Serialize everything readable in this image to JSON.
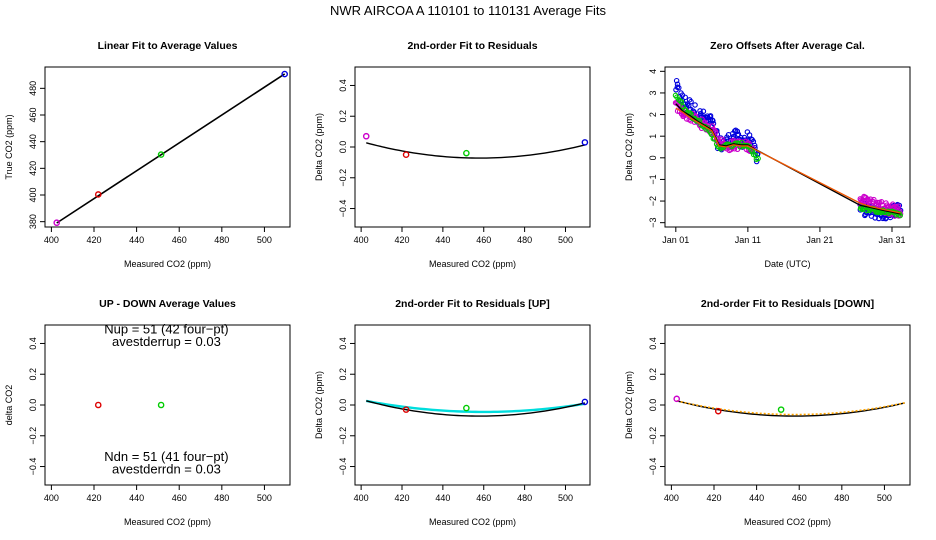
{
  "figure_title": "NWR   AIRCOA A   110101 to 110131   Average Fits",
  "chart_data": [
    {
      "id": "p1",
      "type": "scatter",
      "title": "Linear Fit to Average Values",
      "xlabel": "Measured CO2 (ppm)",
      "ylabel": "True CO2 (ppm)",
      "xlim": [
        397,
        512
      ],
      "ylim": [
        376,
        496
      ],
      "xticks": [
        400,
        420,
        440,
        460,
        480,
        500
      ],
      "yticks": [
        380,
        400,
        420,
        440,
        460,
        480
      ],
      "ytick_rotated": true,
      "points": [
        {
          "x": 402.5,
          "y": 379.2,
          "color": "#cc00cc"
        },
        {
          "x": 422.0,
          "y": 400.4,
          "color": "#dd0000"
        },
        {
          "x": 451.5,
          "y": 430.3,
          "color": "#00cc00"
        },
        {
          "x": 509.5,
          "y": 490.7,
          "color": "#0000dd"
        }
      ],
      "lines": [
        {
          "color": "#000000",
          "width": 1.6,
          "x": [
            402.5,
            509.5
          ],
          "y": [
            379.0,
            490.8
          ]
        }
      ]
    },
    {
      "id": "p2",
      "type": "scatter",
      "title": "2nd-order Fit to Residuals",
      "xlabel": "Measured CO2 (ppm)",
      "ylabel": "Delta CO2 (ppm)",
      "xlim": [
        397,
        512
      ],
      "ylim": [
        -0.52,
        0.52
      ],
      "xticks": [
        400,
        420,
        440,
        460,
        480,
        500
      ],
      "yticks": [
        -0.4,
        -0.2,
        0.0,
        0.2,
        0.4
      ],
      "ytick_labels": [
        "−0.4",
        "−0.2",
        "0.0",
        "0.2",
        "0.4"
      ],
      "ytick_rotated": true,
      "points": [
        {
          "x": 402.5,
          "y": 0.07,
          "color": "#cc00cc"
        },
        {
          "x": 422.0,
          "y": -0.05,
          "color": "#dd0000"
        },
        {
          "x": 451.5,
          "y": -0.04,
          "color": "#00cc00"
        },
        {
          "x": 509.5,
          "y": 0.03,
          "color": "#0000dd"
        }
      ],
      "curves": [
        {
          "color": "#000000",
          "width": 1.4,
          "x0": 402.5,
          "x1": 509.5,
          "vertex_x": 458,
          "vertex_y": -0.072,
          "a": 3.22e-05
        }
      ]
    },
    {
      "id": "p3",
      "type": "scatter",
      "title": "Zero Offsets After Average Cal.",
      "xlabel": "Date (UTC)",
      "ylabel": "Delta CO2 (ppm)",
      "xlim": [
        -1.5,
        32.5
      ],
      "ylim": [
        -3.2,
        4.2
      ],
      "xticks": [
        0,
        10,
        20,
        30
      ],
      "xtick_labels": [
        "Jan 01",
        "Jan 11",
        "Jan 21",
        "Jan 31"
      ],
      "yticks": [
        -3,
        -2,
        -1,
        0,
        1,
        2,
        3,
        4
      ],
      "ytick_labels": [
        "−3",
        "−2",
        "−1",
        "0",
        "1",
        "2",
        "3",
        "4"
      ],
      "ytick_rotated": true,
      "bands": [
        {
          "color": "#0000dd",
          "n": 120,
          "x0": 0,
          "x1": 11.4,
          "amp": 0.35,
          "trend_x": [
            0,
            1,
            2,
            3,
            4,
            5,
            6,
            7,
            8,
            9,
            10,
            11.4
          ],
          "trend_y": [
            3.3,
            2.6,
            2.4,
            2.0,
            1.8,
            1.6,
            0.6,
            0.7,
            1.0,
            0.8,
            0.9,
            0.0
          ]
        },
        {
          "color": "#cc00cc",
          "n": 110,
          "x0": 0,
          "x1": 10.6,
          "amp": 0.22,
          "trend_x": [
            0,
            1,
            2,
            3,
            4,
            5,
            6,
            7,
            8,
            9,
            10.6
          ],
          "trend_y": [
            2.4,
            2.1,
            1.9,
            1.7,
            1.5,
            1.3,
            0.8,
            0.5,
            0.6,
            0.6,
            0.5
          ]
        },
        {
          "color": "#00cc00",
          "n": 60,
          "x0": 0,
          "x1": 11.4,
          "amp": 0.1,
          "trend_x": [
            0,
            1,
            2,
            4,
            6,
            8,
            10,
            11.4
          ],
          "trend_y": [
            2.9,
            2.4,
            2.0,
            1.5,
            0.5,
            0.6,
            0.6,
            -0.1
          ]
        },
        {
          "color": "#0000dd",
          "n": 70,
          "x0": 25.6,
          "x1": 31.2,
          "amp": 0.28,
          "trend_x": [
            25.6,
            27,
            29,
            31.2
          ],
          "trend_y": [
            -2.3,
            -2.5,
            -2.6,
            -2.3
          ]
        },
        {
          "color": "#cc00cc",
          "n": 80,
          "x0": 25.6,
          "x1": 31.2,
          "amp": 0.28,
          "trend_x": [
            25.6,
            27,
            29,
            31.2
          ],
          "trend_y": [
            -2.0,
            -2.1,
            -2.3,
            -2.5
          ]
        },
        {
          "color": "#00cc00",
          "n": 35,
          "x0": 25.6,
          "x1": 31.2,
          "amp": 0.08,
          "trend_x": [
            25.6,
            27,
            29,
            31.2
          ],
          "trend_y": [
            -2.3,
            -2.4,
            -2.5,
            -2.6
          ]
        }
      ],
      "lines": [
        {
          "color": "#000000",
          "width": 1.3,
          "x": [
            0,
            1,
            2,
            3,
            4,
            5,
            6,
            7,
            8,
            9,
            10,
            11,
            25.6,
            27,
            29,
            31.2
          ],
          "y": [
            2.5,
            2.15,
            1.95,
            1.7,
            1.5,
            1.3,
            0.6,
            0.55,
            0.65,
            0.6,
            0.6,
            0.4,
            -2.2,
            -2.3,
            -2.45,
            -2.6
          ]
        },
        {
          "color": "#ee5500",
          "width": 1.3,
          "x": [
            0,
            1,
            2,
            3,
            4,
            5,
            6,
            7,
            8,
            9,
            10,
            25.6,
            27,
            29,
            31.2
          ],
          "y": [
            2.3,
            2.1,
            1.85,
            1.65,
            1.45,
            1.25,
            0.55,
            0.5,
            0.6,
            0.55,
            0.55,
            -2.1,
            -2.25,
            -2.4,
            -2.55
          ]
        }
      ]
    },
    {
      "id": "p4",
      "type": "scatter",
      "title": "UP - DOWN Average Values",
      "xlabel": "Measured CO2 (ppm)",
      "ylabel": "delta CO2",
      "xlim": [
        397,
        512
      ],
      "ylim": [
        -0.52,
        0.52
      ],
      "xticks": [
        400,
        420,
        440,
        460,
        480,
        500
      ],
      "yticks": [
        -0.4,
        -0.2,
        0.0,
        0.2,
        0.4
      ],
      "ytick_labels": [
        "−0.4",
        "−0.2",
        "0.0",
        "0.2",
        "0.4"
      ],
      "ytick_rotated": true,
      "points": [
        {
          "x": 422.0,
          "y": 0.0,
          "color": "#dd0000"
        },
        {
          "x": 451.5,
          "y": 0.0,
          "color": "#00cc00"
        }
      ],
      "annotations": [
        {
          "text": "Nup = 51 (42 four−pt)",
          "x": 454,
          "y": 0.465
        },
        {
          "text": "avestderrup =  0.03",
          "x": 454,
          "y": 0.385
        },
        {
          "text": "Ndn = 51 (41 four−pt)",
          "x": 454,
          "y": -0.365
        },
        {
          "text": "avestderrdn =  0.03",
          "x": 454,
          "y": -0.445
        }
      ]
    },
    {
      "id": "p5",
      "type": "scatter",
      "title": "2nd-order Fit to Residuals [UP]",
      "xlabel": "Measured CO2 (ppm)",
      "ylabel": "Delta CO2 (ppm)",
      "xlim": [
        397,
        512
      ],
      "ylim": [
        -0.52,
        0.52
      ],
      "xticks": [
        400,
        420,
        440,
        460,
        480,
        500
      ],
      "yticks": [
        -0.4,
        -0.2,
        0.0,
        0.2,
        0.4
      ],
      "ytick_labels": [
        "−0.4",
        "−0.2",
        "0.0",
        "0.2",
        "0.4"
      ],
      "ytick_rotated": true,
      "points": [
        {
          "x": 422.0,
          "y": -0.03,
          "color": "#dd0000"
        },
        {
          "x": 451.5,
          "y": -0.02,
          "color": "#00cc00"
        },
        {
          "x": 509.5,
          "y": 0.02,
          "color": "#0000dd"
        }
      ],
      "curves": [
        {
          "color": "#00dddd",
          "width": 2.4,
          "x0": 402.5,
          "x1": 509.5,
          "vertex_x": 460,
          "vertex_y": -0.045,
          "a": 2.16e-05
        },
        {
          "color": "#000000",
          "width": 1.4,
          "x0": 402.5,
          "x1": 509.5,
          "vertex_x": 458,
          "vertex_y": -0.072,
          "a": 3.22e-05
        }
      ]
    },
    {
      "id": "p6",
      "type": "scatter",
      "title": "2nd-order Fit to Residuals [DOWN]",
      "xlabel": "Measured CO2 (ppm)",
      "ylabel": "Delta CO2 (ppm)",
      "xlim": [
        397,
        512
      ],
      "ylim": [
        -0.52,
        0.52
      ],
      "xticks": [
        400,
        420,
        440,
        460,
        480,
        500
      ],
      "yticks": [
        -0.4,
        -0.2,
        0.0,
        0.2,
        0.4
      ],
      "ytick_labels": [
        "−0.4",
        "−0.2",
        "0.0",
        "0.2",
        "0.4"
      ],
      "ytick_rotated": true,
      "points": [
        {
          "x": 402.5,
          "y": 0.04,
          "color": "#cc00cc"
        },
        {
          "x": 422.0,
          "y": -0.04,
          "color": "#dd0000"
        },
        {
          "x": 451.5,
          "y": -0.03,
          "color": "#00cc00"
        }
      ],
      "curves": [
        {
          "color": "#000000",
          "width": 1.4,
          "x0": 402.5,
          "x1": 509.5,
          "vertex_x": 458,
          "vertex_y": -0.072,
          "a": 3.22e-05
        },
        {
          "color": "#ffa500",
          "width": 1.6,
          "dash": "2,2",
          "x0": 402.5,
          "x1": 509.5,
          "vertex_x": 458,
          "vertex_y": -0.062,
          "a": 2.88e-05
        }
      ]
    }
  ]
}
